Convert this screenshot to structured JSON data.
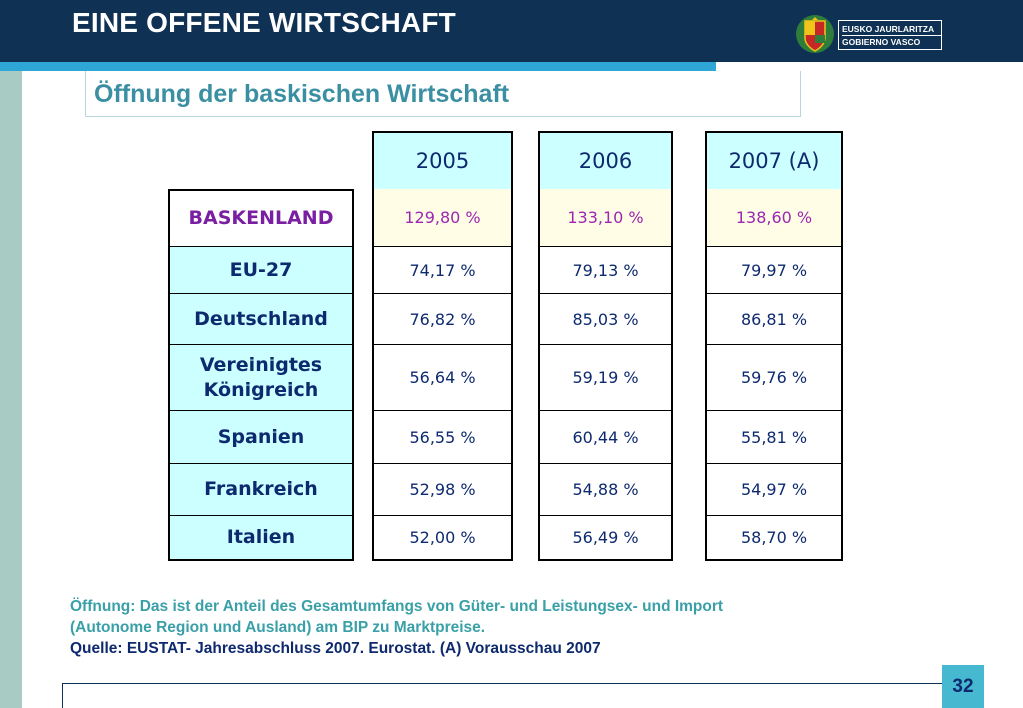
{
  "header": {
    "title": "EINE OFFENE WIRTSCHAFT"
  },
  "logo": {
    "line1": "EUSKO JAURLARITZA",
    "line2": "GOBIERNO VASCO"
  },
  "subtitle": "Öffnung der baskischen Wirtschaft",
  "table": {
    "columns": [
      "2005",
      "2006",
      "2007 (A)"
    ],
    "rows": [
      {
        "label": "BASKENLAND",
        "values": [
          "129,80 %",
          "133,10 %",
          "138,60 %"
        ]
      },
      {
        "label": "EU-27",
        "values": [
          "74,17 %",
          "79,13 %",
          "79,97 %"
        ]
      },
      {
        "label": "Deutschland",
        "values": [
          "76,82 %",
          "85,03 %",
          "86,81 %"
        ]
      },
      {
        "label": "Vereinigtes Königreich",
        "values": [
          "56,64 %",
          "59,19 %",
          "59,76 %"
        ]
      },
      {
        "label": "Spanien",
        "values": [
          "56,55 %",
          "60,44 %",
          "55,81 %"
        ]
      },
      {
        "label": "Frankreich",
        "values": [
          "52,98 %",
          "54,88 %",
          "54,97 %"
        ]
      },
      {
        "label": "Italien",
        "values": [
          "52,00 %",
          "56,49 %",
          "58,70 %"
        ]
      }
    ]
  },
  "notes": {
    "line1": "Öffnung: Das ist der Anteil des Gesamtumfangs von Güter- und Leistungsex- und Import",
    "line2": "(Autonome Region und Ausland) am BIP zu Marktpreise.",
    "source": "Quelle: EUSTAT- Jahresabschluss 2007. Eurostat. (A) Vorausschau  2007"
  },
  "page_number": "32",
  "colors": {
    "header_bg": "#0e3154",
    "accent": "#2ea6d6",
    "cell_label_bg": "#ccffff",
    "highlight": "#9c27b0"
  }
}
